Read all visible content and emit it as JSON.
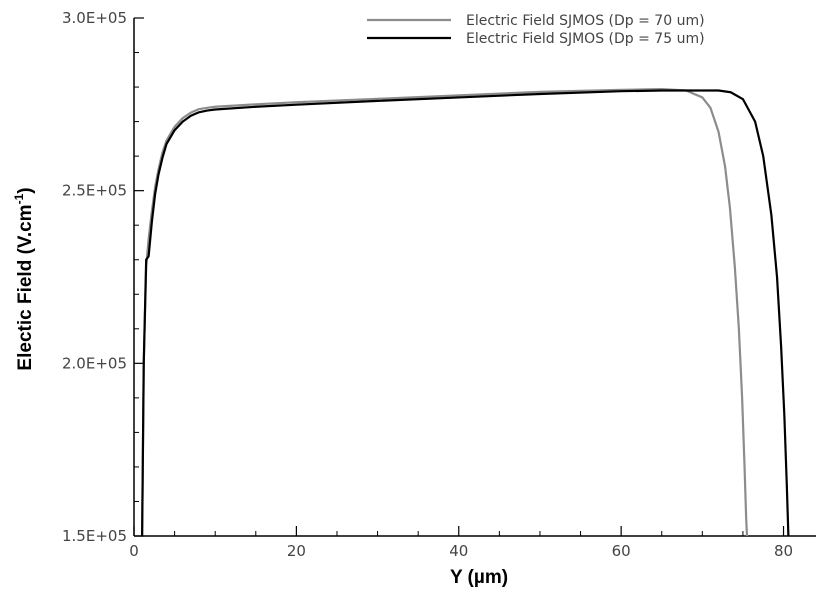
{
  "chart_data": {
    "type": "line",
    "xlabel": "Y (µm)",
    "ylabel_main": "Electic Field (V.cm",
    "ylabel_sup": "-1",
    "ylabel_close": ")",
    "xlim": [
      0,
      84
    ],
    "ylim": [
      150000,
      300000
    ],
    "x_ticks": [
      0,
      20,
      40,
      60,
      80
    ],
    "x_tick_labels": [
      "0",
      "20",
      "40",
      "60",
      "80"
    ],
    "x_minor_step": 5,
    "y_ticks": [
      150000,
      200000,
      250000,
      300000
    ],
    "y_tick_labels": [
      "1.5E+05",
      "2.0E+05",
      "2.5E+05",
      "3.0E+05"
    ],
    "y_minor_step": 10000,
    "grid": false,
    "legend_position": "top-right",
    "series": [
      {
        "name": "Electric Field SJMOS (Dp = 70 um)",
        "color": "#8c8c8c",
        "x": [
          1.0,
          1.2,
          1.5,
          1.8,
          2.2,
          2.6,
          3.0,
          3.5,
          4.0,
          5.0,
          6.0,
          7.0,
          8.0,
          9.0,
          10.0,
          15.0,
          20.0,
          30.0,
          40.0,
          50.0,
          60.0,
          65.0,
          68.0,
          70.0,
          71.0,
          72.0,
          72.8,
          73.4,
          74.0,
          74.5,
          74.9,
          75.2,
          75.4,
          75.5
        ],
        "y": [
          150000,
          200000,
          228000,
          236000,
          244000,
          251000,
          256000,
          261000,
          264500,
          268500,
          271000,
          272600,
          273600,
          274000,
          274300,
          275000,
          275600,
          276600,
          277600,
          278600,
          279200,
          279400,
          279000,
          277000,
          274000,
          267000,
          257000,
          245000,
          228000,
          210000,
          190000,
          170000,
          155000,
          150000
        ]
      },
      {
        "name": "Electric Field SJMOS (Dp = 75 um)",
        "color": "#000000",
        "x": [
          1.0,
          1.2,
          1.5,
          1.8,
          2.0,
          2.2,
          2.6,
          3.0,
          3.5,
          4.0,
          5.0,
          6.0,
          7.0,
          8.0,
          9.0,
          10.0,
          15.0,
          20.0,
          30.0,
          40.0,
          50.0,
          60.0,
          65.0,
          70.0,
          72.0,
          73.5,
          75.0,
          76.5,
          77.5,
          78.5,
          79.2,
          79.7,
          80.1,
          80.4,
          80.6
        ],
        "y": [
          150000,
          200000,
          230000,
          231000,
          236000,
          241000,
          249000,
          254500,
          259500,
          263500,
          267500,
          270000,
          271700,
          272700,
          273200,
          273500,
          274300,
          274900,
          276000,
          277000,
          278000,
          278800,
          279000,
          279000,
          279000,
          278500,
          276500,
          270000,
          260000,
          243000,
          225000,
          205000,
          185000,
          165000,
          150000
        ]
      }
    ]
  }
}
